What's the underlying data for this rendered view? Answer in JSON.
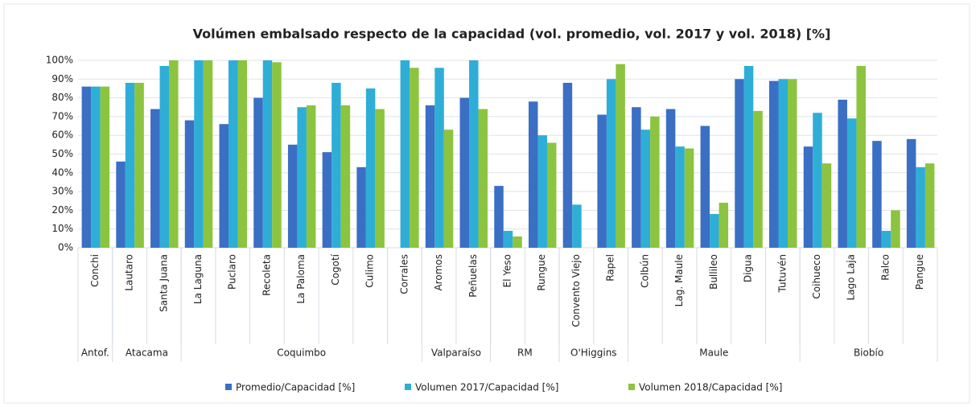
{
  "chart_data": {
    "type": "bar",
    "title": "Volúmen embalsado respecto de la capacidad (vol. promedio, vol. 2017 y vol. 2018) [%]",
    "groups": [
      {
        "name": "Antof.",
        "categories": [
          "Conchi"
        ]
      },
      {
        "name": "Atacama",
        "categories": [
          "Lautaro",
          "Santa Juana"
        ]
      },
      {
        "name": "Coquimbo",
        "categories": [
          "La Laguna",
          "Puclaro",
          "Recoleta",
          "La Paloma",
          "Cogotí",
          "Culimo",
          "Corrales"
        ]
      },
      {
        "name": "Valparaíso",
        "categories": [
          "Aromos",
          "Peñuelas"
        ]
      },
      {
        "name": "RM",
        "categories": [
          "El Yeso",
          "Rungue"
        ]
      },
      {
        "name": "O'Higgins",
        "categories": [
          "Convento Viejo",
          "Rapel"
        ]
      },
      {
        "name": "Maule",
        "categories": [
          "Colbún",
          "Lag. Maule",
          "Bullileo",
          "Digua",
          "Tutuvén"
        ]
      },
      {
        "name": "Biobío",
        "categories": [
          "Coihueco",
          "Lago Laja",
          "Ralco",
          "Pangue"
        ]
      }
    ],
    "series": [
      {
        "name": "Promedio/Capacidad [%]",
        "color": "#3a6fc4",
        "values": [
          86,
          46,
          74,
          68,
          66,
          80,
          55,
          51,
          43,
          null,
          76,
          80,
          33,
          78,
          88,
          71,
          75,
          74,
          65,
          90,
          89,
          54,
          79,
          57,
          58
        ]
      },
      {
        "name": "Volumen 2017/Capacidad [%]",
        "color": "#2eaed6",
        "values": [
          86,
          88,
          97,
          100,
          100,
          100,
          75,
          88,
          85,
          100,
          96,
          100,
          9,
          60,
          23,
          90,
          63,
          54,
          18,
          97,
          90,
          72,
          69,
          9,
          43
        ]
      },
      {
        "name": "Volumen 2018/Capacidad [%]",
        "color": "#8cc43f",
        "values": [
          86,
          88,
          100,
          100,
          100,
          99,
          76,
          76,
          74,
          96,
          63,
          74,
          6,
          56,
          null,
          98,
          70,
          53,
          24,
          73,
          90,
          45,
          97,
          20,
          45
        ]
      }
    ],
    "ylim": [
      0,
      100
    ],
    "yticks": [
      {
        "value": 0,
        "label": "0%"
      },
      {
        "value": 10,
        "label": "10%"
      },
      {
        "value": 20,
        "label": "20%"
      },
      {
        "value": 30,
        "label": "30%"
      },
      {
        "value": 40,
        "label": "40%"
      },
      {
        "value": 50,
        "label": "50%"
      },
      {
        "value": 60,
        "label": "60%"
      },
      {
        "value": 70,
        "label": "70%"
      },
      {
        "value": 80,
        "label": "80%"
      },
      {
        "value": 90,
        "label": "90%"
      },
      {
        "value": 100,
        "label": "100%"
      }
    ],
    "grid": true,
    "legend": "bottom"
  }
}
